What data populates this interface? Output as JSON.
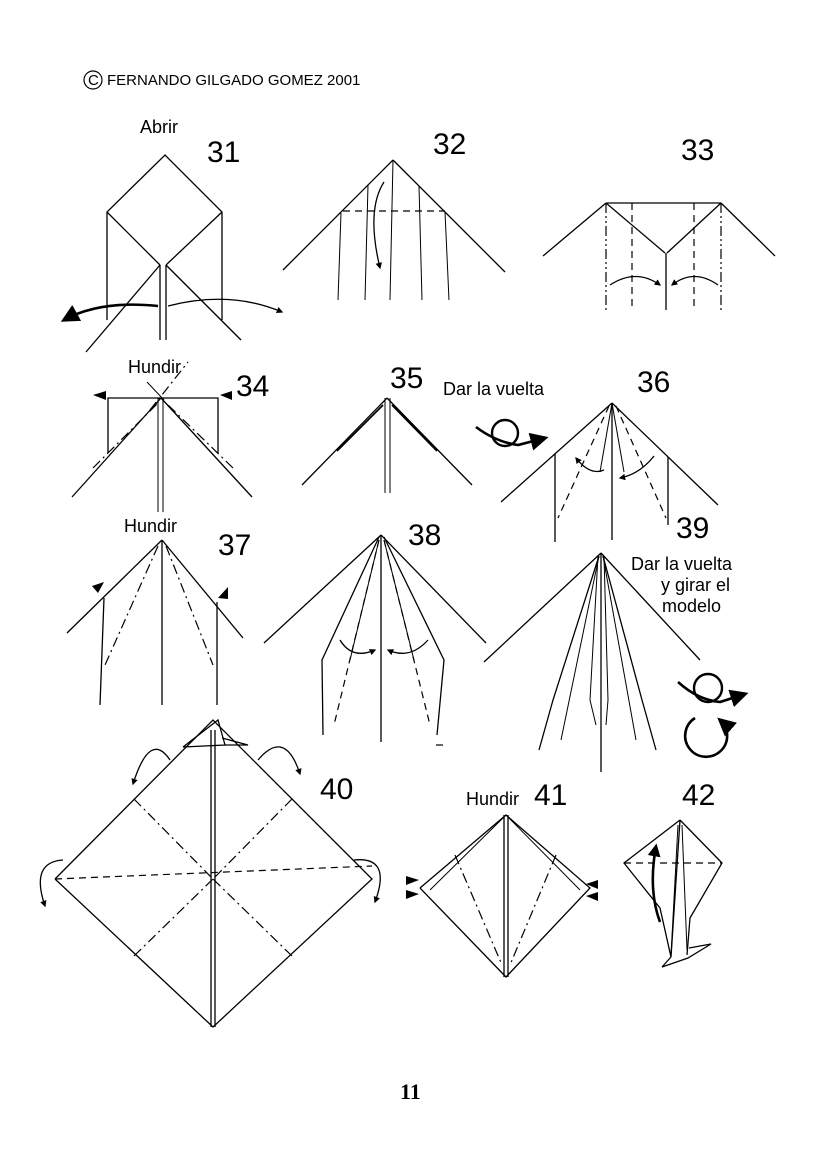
{
  "copyright": {
    "symbol": "C",
    "text": "FERNANDO GILGADO GOMEZ 2001"
  },
  "steps": [
    {
      "number": "31",
      "caption": "Abrir"
    },
    {
      "number": "32",
      "caption": ""
    },
    {
      "number": "33",
      "caption": ""
    },
    {
      "number": "34",
      "caption": "Hundir"
    },
    {
      "number": "35",
      "caption": ""
    },
    {
      "number": "36",
      "caption": "Dar la vuelta"
    },
    {
      "number": "37",
      "caption": "Hundir"
    },
    {
      "number": "38",
      "caption": ""
    },
    {
      "number": "39",
      "caption_lines": [
        "Dar la vuelta",
        "y girar el",
        "modelo"
      ]
    },
    {
      "number": "40",
      "caption": ""
    },
    {
      "number": "41",
      "caption": "Hundir"
    },
    {
      "number": "42",
      "caption": ""
    }
  ],
  "page_number": "11"
}
